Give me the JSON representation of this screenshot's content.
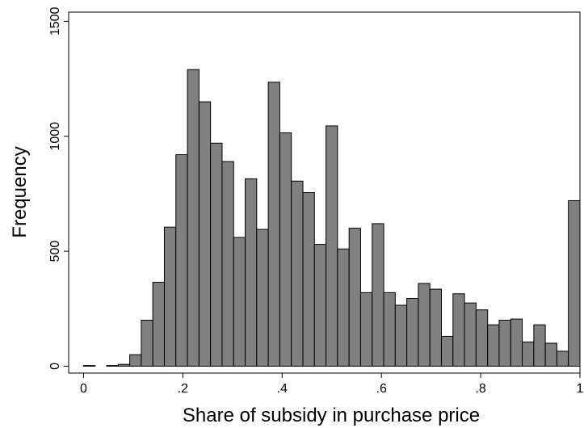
{
  "chart_data": {
    "type": "histogram",
    "xlabel": "Share of subsidy in purchase price",
    "ylabel": "Frequency",
    "bins": [
      0,
      0.0233,
      0.0465,
      0.0698,
      0.093,
      0.1163,
      0.1395,
      0.1628,
      0.186,
      0.2093,
      0.2326,
      0.2558,
      0.2791,
      0.3023,
      0.3256,
      0.3488,
      0.3721,
      0.3953,
      0.4186,
      0.4419,
      0.4651,
      0.4884,
      0.5116,
      0.5349,
      0.5581,
      0.5814,
      0.6047,
      0.6279,
      0.6512,
      0.6744,
      0.6977,
      0.7209,
      0.7442,
      0.7674,
      0.7907,
      0.814,
      0.8372,
      0.8605,
      0.8837,
      0.907,
      0.9302,
      0.9535,
      0.9767,
      1
    ],
    "values": [
      3,
      0,
      3,
      8,
      50,
      200,
      365,
      605,
      920,
      1290,
      1150,
      970,
      890,
      560,
      815,
      595,
      1235,
      1015,
      805,
      755,
      530,
      1045,
      510,
      600,
      320,
      620,
      320,
      265,
      295,
      360,
      335,
      130,
      315,
      275,
      245,
      180,
      200,
      205,
      105,
      180,
      100,
      65,
      720
    ],
    "color": "#808080",
    "xlim": [
      -0.03,
      1.0
    ],
    "xticks": [
      0,
      {
        "value": 0.2,
        "label": ".2"
      },
      {
        "value": 0.4,
        "label": ".4"
      },
      {
        "value": 0.6,
        "label": ".6"
      },
      {
        "value": 0.8,
        "label": ".8"
      },
      1
    ],
    "ylim": [
      -30,
      1540
    ],
    "yticks": [
      0,
      500,
      1000,
      1500
    ]
  }
}
